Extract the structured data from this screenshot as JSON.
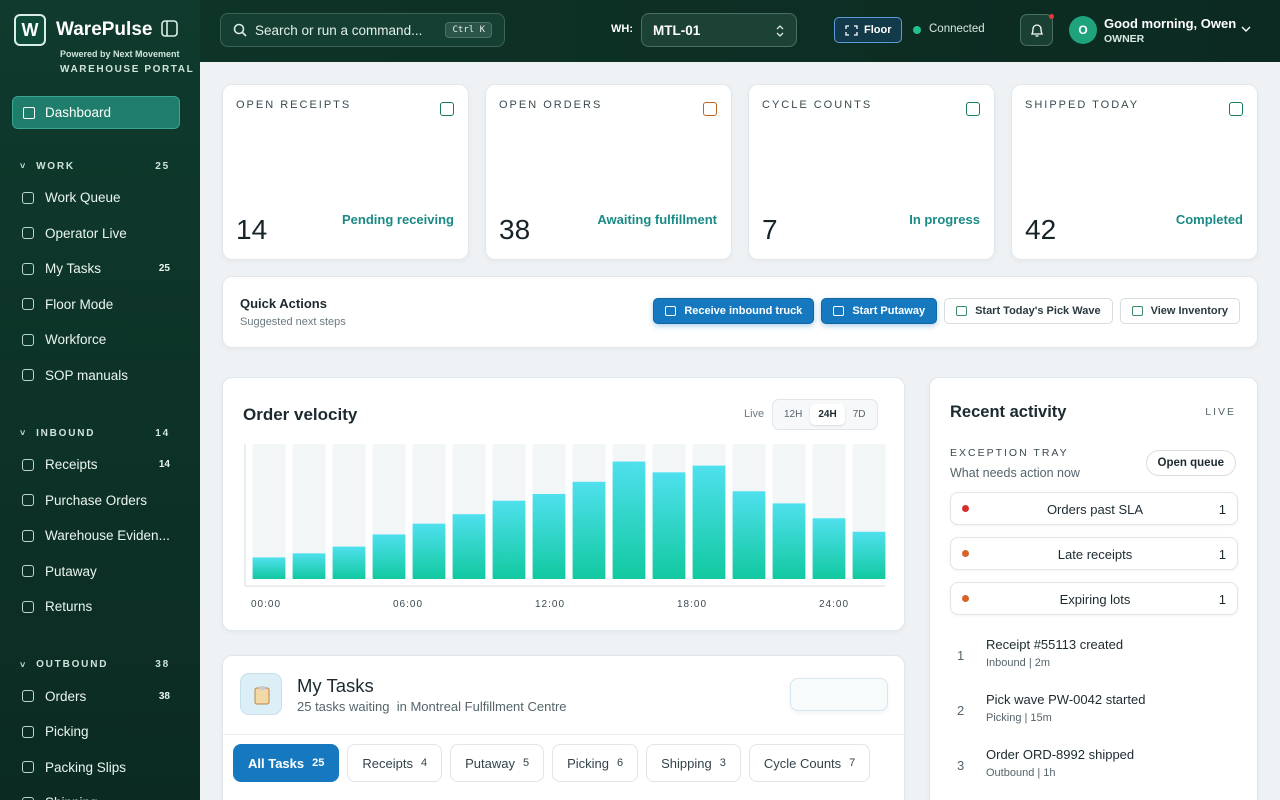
{
  "sidebar": {
    "brand": "WarePulse",
    "logo": "W",
    "powered": "Powered by Next Movement",
    "portal": "WAREHOUSE PORTAL",
    "dashboard": "Dashboard",
    "sections": [
      {
        "title": "WORK",
        "count": "25",
        "items": [
          {
            "label": "Work Queue"
          },
          {
            "label": "Operator Live"
          },
          {
            "label": "My Tasks",
            "count": "25"
          },
          {
            "label": "Floor Mode"
          },
          {
            "label": "Workforce"
          },
          {
            "label": "SOP manuals"
          }
        ]
      },
      {
        "title": "INBOUND",
        "count": "14",
        "items": [
          {
            "label": "Receipts",
            "count": "14"
          },
          {
            "label": "Purchase Orders"
          },
          {
            "label": "Warehouse Eviden..."
          },
          {
            "label": "Putaway"
          },
          {
            "label": "Returns"
          }
        ]
      },
      {
        "title": "OUTBOUND",
        "count": "38",
        "items": [
          {
            "label": "Orders",
            "count": "38"
          },
          {
            "label": "Picking"
          },
          {
            "label": "Packing Slips"
          },
          {
            "label": "Shipping"
          }
        ]
      }
    ]
  },
  "topbar": {
    "search": "Search or run a command...",
    "shortcut": "Ctrl K",
    "wh_label": "WH:",
    "wh": "MTL-01",
    "floor": "Floor",
    "status": "Connected",
    "avatar": "O",
    "greeting": "Good morning, Owen",
    "role": "OWNER"
  },
  "stats": [
    {
      "label": "OPEN RECEIPTS",
      "value": "14",
      "note": "Pending receiving"
    },
    {
      "label": "OPEN ORDERS",
      "value": "38",
      "note": "Awaiting fulfillment"
    },
    {
      "label": "CYCLE COUNTS",
      "value": "7",
      "note": "In progress"
    },
    {
      "label": "SHIPPED TODAY",
      "value": "42",
      "note": "Completed"
    }
  ],
  "quick_actions": {
    "title": "Quick Actions",
    "subtitle": "Suggested next steps",
    "buttons": [
      "Receive inbound truck",
      "Start Putaway",
      "Start Today's Pick Wave",
      "View Inventory"
    ]
  },
  "order_velocity": {
    "type": "bar",
    "title": "Order velocity",
    "live": "Live",
    "ranges": [
      "12H",
      "24H",
      "7D"
    ],
    "x_labels": [
      "00:00",
      "06:00",
      "12:00",
      "18:00",
      "24:00"
    ],
    "values": [
      16,
      19,
      24,
      33,
      41,
      48,
      58,
      63,
      72,
      87,
      79,
      84,
      65,
      56,
      45,
      35
    ],
    "ylim": [
      0,
      100
    ],
    "color": "#12c9a0"
  },
  "activity": {
    "title": "Recent activity",
    "badge": "LIVE",
    "tray_title": "EXCEPTION TRAY",
    "tray_subtitle": "What needs action now",
    "open_queue": "Open queue",
    "exceptions": [
      {
        "label": "Orders past SLA",
        "count": "1"
      },
      {
        "label": "Late receipts",
        "count": "1"
      },
      {
        "label": "Expiring lots",
        "count": "1"
      }
    ],
    "events": [
      {
        "n": "1",
        "title": "Receipt #55113 created",
        "meta": "Inbound | 2m"
      },
      {
        "n": "2",
        "title": "Pick wave PW-0042 started",
        "meta": "Picking | 15m"
      },
      {
        "n": "3",
        "title": "Order ORD-8992 shipped",
        "meta": "Outbound | 1h"
      }
    ]
  },
  "tasks": {
    "title": "My Tasks",
    "subtitle": "25 tasks waiting",
    "location": "in Montreal Fulfillment Centre",
    "tabs": [
      {
        "label": "All Tasks",
        "count": "25"
      },
      {
        "label": "Receipts",
        "count": "4"
      },
      {
        "label": "Putaway",
        "count": "5"
      },
      {
        "label": "Picking",
        "count": "6"
      },
      {
        "label": "Shipping",
        "count": "3"
      },
      {
        "label": "Cycle Counts",
        "count": "7"
      }
    ]
  }
}
